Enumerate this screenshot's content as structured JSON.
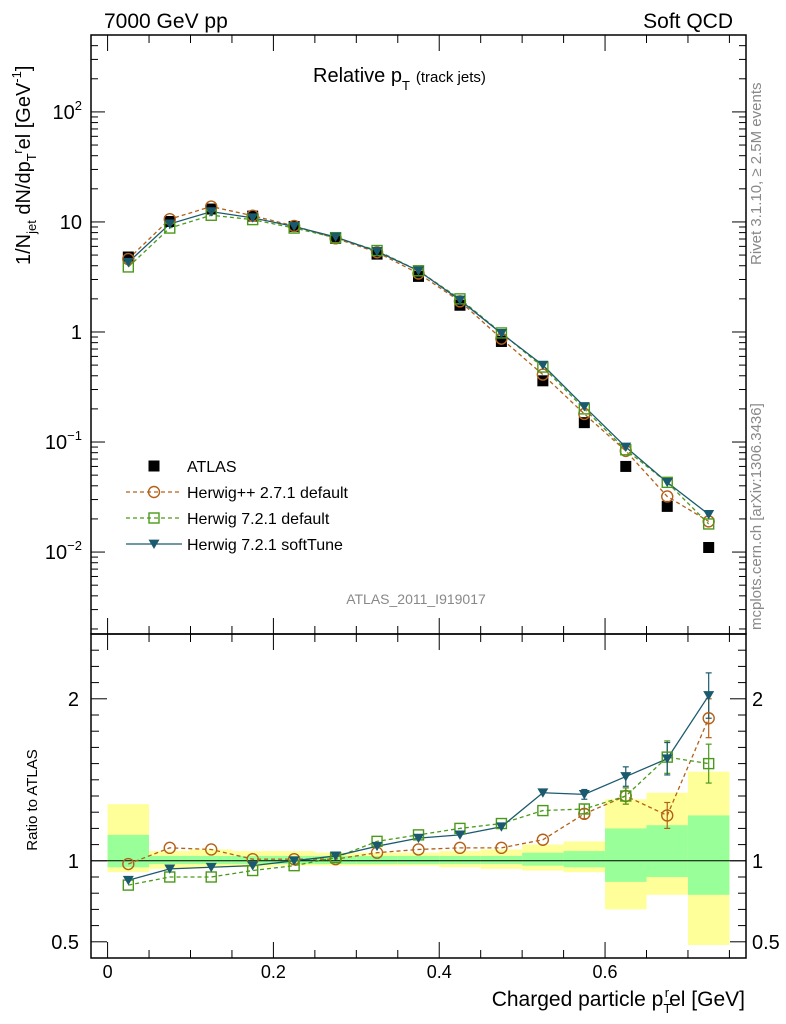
{
  "header": {
    "left": "7000 GeV pp",
    "right": "Soft QCD"
  },
  "plot_title": {
    "main": "Relative p",
    "main_sub": "T",
    "suffix": "(track jets)"
  },
  "side_text": {
    "rivet": "Rivet 3.1.10, ≥ 2.5M events",
    "mcplots": "mcplots.cern.ch [arXiv:1306.3436]"
  },
  "analysis_label": "ATLAS_2011_I919017",
  "colors": {
    "atlas": "#000000",
    "herwigpp": "#b3601a",
    "herwig721": "#4a9a1a",
    "softtune": "#1b5a6e",
    "band_outer": "#ffff99",
    "band_inner": "#99ff99"
  },
  "chart_data": [
    {
      "type": "scatter",
      "panel": "main",
      "ylabel_parts": [
        "1/N",
        "jet",
        " dN/dp",
        "T",
        "r",
        "el [GeV",
        "-1",
        "]"
      ],
      "yscale": "log",
      "ylim": [
        0.0018,
        500
      ],
      "xlim": [
        -0.02,
        0.77
      ],
      "y_ticks": [
        {
          "v": 100,
          "base": "10",
          "exp": "2"
        },
        {
          "v": 10,
          "base": "10",
          "exp": ""
        },
        {
          "v": 1,
          "base": "1",
          "exp": ""
        },
        {
          "v": 0.1,
          "base": "10",
          "exp": "−1"
        },
        {
          "v": 0.01,
          "base": "10",
          "exp": "−2"
        }
      ],
      "x": [
        0.025,
        0.075,
        0.125,
        0.175,
        0.225,
        0.275,
        0.325,
        0.375,
        0.425,
        0.475,
        0.525,
        0.575,
        0.625,
        0.675,
        0.725
      ],
      "series": [
        {
          "name": "ATLAS",
          "key": "atlas",
          "marker": "square-filled",
          "line": "none",
          "values": [
            4.8,
            10.1,
            13.1,
            11.3,
            9.1,
            7.1,
            5.1,
            3.2,
            1.75,
            0.82,
            0.36,
            0.15,
            0.06,
            0.026,
            0.011
          ]
        },
        {
          "name": "Herwig++ 2.7.1 default",
          "key": "herwigpp",
          "marker": "circle-open",
          "line": "dashed",
          "values": [
            4.6,
            10.6,
            13.8,
            11.4,
            9.2,
            7.1,
            5.3,
            3.4,
            1.9,
            0.87,
            0.41,
            0.18,
            0.083,
            0.032,
            0.019
          ]
        },
        {
          "name": "Herwig 7.2.1 default",
          "key": "herwig721",
          "marker": "square-open",
          "line": "dashed",
          "values": [
            3.9,
            8.8,
            11.5,
            10.5,
            8.8,
            7.2,
            5.5,
            3.6,
            2.0,
            0.98,
            0.48,
            0.2,
            0.085,
            0.043,
            0.018
          ]
        },
        {
          "name": "Herwig 7.2.1 softTune",
          "key": "softtune",
          "marker": "triangle-down-filled",
          "line": "solid",
          "values": [
            4.3,
            9.6,
            12.4,
            10.9,
            9.1,
            7.3,
            5.4,
            3.6,
            1.95,
            0.97,
            0.5,
            0.21,
            0.09,
            0.043,
            0.022
          ]
        }
      ]
    },
    {
      "type": "line",
      "panel": "ratio",
      "ylabel": "Ratio to ATLAS",
      "xlabel_parts": [
        "Charged particle p",
        "T",
        "r",
        "el [GeV]"
      ],
      "ylim": [
        0.4,
        2.4
      ],
      "xlim": [
        -0.02,
        0.77
      ],
      "y_ticks": [
        0.5,
        1,
        2
      ],
      "y_tick_labels": [
        "0.5",
        "1",
        "2"
      ],
      "x_ticks": [
        0,
        0.2,
        0.4,
        0.6
      ],
      "x_tick_labels": [
        "0",
        "0.2",
        "0.4",
        "0.6"
      ],
      "x": [
        0.025,
        0.075,
        0.125,
        0.175,
        0.225,
        0.275,
        0.325,
        0.375,
        0.425,
        0.475,
        0.525,
        0.575,
        0.625,
        0.675,
        0.725
      ],
      "bins": [
        [
          0,
          0.05
        ],
        [
          0.05,
          0.1
        ],
        [
          0.1,
          0.15
        ],
        [
          0.15,
          0.2
        ],
        [
          0.2,
          0.25
        ],
        [
          0.25,
          0.3
        ],
        [
          0.3,
          0.35
        ],
        [
          0.35,
          0.4
        ],
        [
          0.4,
          0.45
        ],
        [
          0.45,
          0.5
        ],
        [
          0.5,
          0.55
        ],
        [
          0.55,
          0.6
        ],
        [
          0.6,
          0.65
        ],
        [
          0.65,
          0.7
        ],
        [
          0.7,
          0.75
        ]
      ],
      "band_outer": [
        [
          0.93,
          1.35
        ],
        [
          0.95,
          1.06
        ],
        [
          0.96,
          1.07
        ],
        [
          0.96,
          1.06
        ],
        [
          0.97,
          1.06
        ],
        [
          0.97,
          1.05
        ],
        [
          0.97,
          1.05
        ],
        [
          0.97,
          1.05
        ],
        [
          0.96,
          1.06
        ],
        [
          0.95,
          1.07
        ],
        [
          0.94,
          1.1
        ],
        [
          0.93,
          1.12
        ],
        [
          0.7,
          1.38
        ],
        [
          0.79,
          1.42
        ],
        [
          0.48,
          1.55
        ]
      ],
      "band_inner": [
        [
          0.96,
          1.16
        ],
        [
          0.98,
          1.03
        ],
        [
          0.98,
          1.03
        ],
        [
          0.98,
          1.03
        ],
        [
          0.98,
          1.03
        ],
        [
          0.98,
          1.03
        ],
        [
          0.98,
          1.03
        ],
        [
          0.98,
          1.03
        ],
        [
          0.98,
          1.03
        ],
        [
          0.98,
          1.03
        ],
        [
          0.97,
          1.05
        ],
        [
          0.96,
          1.06
        ],
        [
          0.87,
          1.2
        ],
        [
          0.9,
          1.22
        ],
        [
          0.79,
          1.28
        ]
      ],
      "series": [
        {
          "name": "Herwig++ 2.7.1 default",
          "key": "herwigpp",
          "marker": "circle-open",
          "line": "dashed",
          "values": [
            0.98,
            1.08,
            1.07,
            1.01,
            1.01,
            1.01,
            1.05,
            1.07,
            1.08,
            1.08,
            1.13,
            1.29,
            1.4,
            1.28,
            1.88
          ],
          "errors": [
            0,
            0,
            0,
            0,
            0,
            0,
            0,
            0,
            0,
            0,
            0,
            0.03,
            0.05,
            0.08,
            0.12
          ]
        },
        {
          "name": "Herwig 7.2.1 default",
          "key": "herwig721",
          "marker": "square-open",
          "line": "dashed",
          "values": [
            0.85,
            0.9,
            0.9,
            0.94,
            0.97,
            1.02,
            1.12,
            1.16,
            1.2,
            1.23,
            1.31,
            1.32,
            1.4,
            1.64,
            1.6
          ],
          "errors": [
            0,
            0,
            0,
            0,
            0,
            0,
            0,
            0,
            0,
            0,
            0,
            0.03,
            0.05,
            0.1,
            0.12
          ]
        },
        {
          "name": "Herwig 7.2.1 softTune",
          "key": "softtune",
          "marker": "triangle-down-filled",
          "line": "solid",
          "values": [
            0.88,
            0.95,
            0.96,
            0.97,
            1.0,
            1.03,
            1.09,
            1.14,
            1.16,
            1.21,
            1.42,
            1.41,
            1.52,
            1.63,
            2.02
          ],
          "errors": [
            0,
            0,
            0,
            0,
            0,
            0,
            0,
            0,
            0,
            0,
            0,
            0.03,
            0.06,
            0.1,
            0.14
          ]
        }
      ]
    }
  ]
}
